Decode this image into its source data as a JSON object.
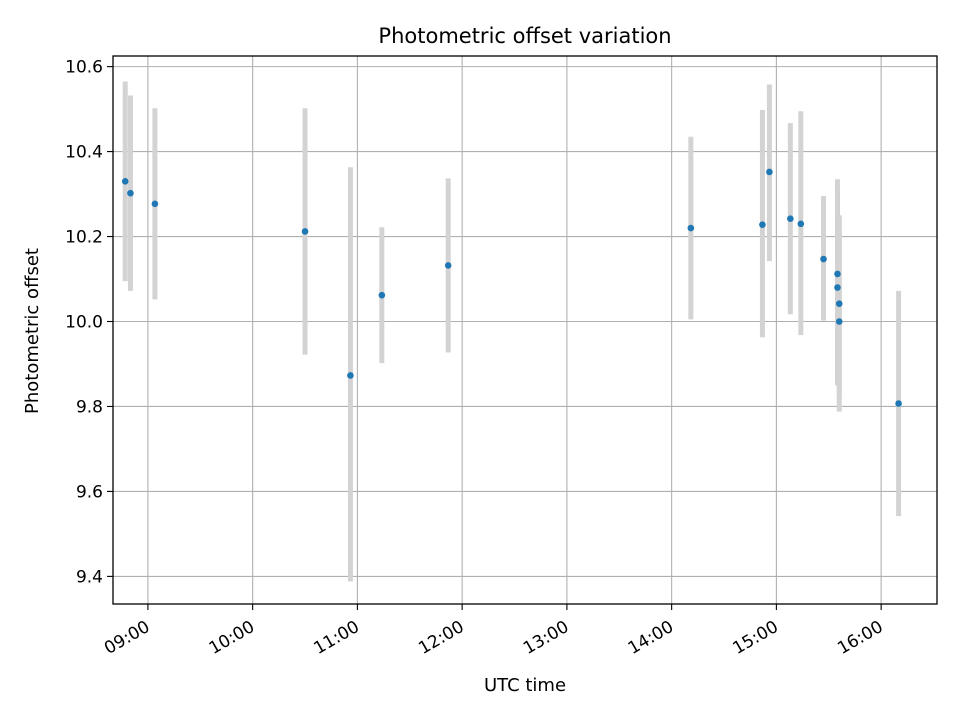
{
  "chart_data": {
    "type": "scatter",
    "title": "Photometric offset variation",
    "xlabel": "UTC time",
    "ylabel": "Photometric offset",
    "x_axis_type": "time",
    "xlim": [
      "08:40",
      "16:32"
    ],
    "ylim": [
      9.335,
      10.625
    ],
    "grid": true,
    "marker_color": "#1f77b4",
    "errorbar_color": "#d3d3d3",
    "x_ticks": [
      "09:00",
      "10:00",
      "11:00",
      "12:00",
      "13:00",
      "14:00",
      "15:00",
      "16:00"
    ],
    "y_ticks": [
      "9.4",
      "9.6",
      "9.8",
      "10.0",
      "10.2",
      "10.4",
      "10.6"
    ],
    "points": [
      {
        "x": "08:47",
        "y": 10.33,
        "err_low": 10.095,
        "err_high": 10.565
      },
      {
        "x": "08:50",
        "y": 10.302,
        "err_low": 10.072,
        "err_high": 10.532
      },
      {
        "x": "09:04",
        "y": 10.277,
        "err_low": 10.052,
        "err_high": 10.502
      },
      {
        "x": "10:30",
        "y": 10.212,
        "err_low": 9.922,
        "err_high": 10.502
      },
      {
        "x": "10:56",
        "y": 9.873,
        "err_low": 9.388,
        "err_high": 10.363
      },
      {
        "x": "11:14",
        "y": 10.062,
        "err_low": 9.902,
        "err_high": 10.222
      },
      {
        "x": "11:52",
        "y": 10.132,
        "err_low": 9.927,
        "err_high": 10.337
      },
      {
        "x": "14:11",
        "y": 10.22,
        "err_low": 10.005,
        "err_high": 10.435
      },
      {
        "x": "14:52",
        "y": 10.228,
        "err_low": 9.963,
        "err_high": 10.498
      },
      {
        "x": "14:56",
        "y": 10.352,
        "err_low": 10.142,
        "err_high": 10.558
      },
      {
        "x": "15:08",
        "y": 10.242,
        "err_low": 10.017,
        "err_high": 10.467
      },
      {
        "x": "15:14",
        "y": 10.23,
        "err_low": 9.968,
        "err_high": 10.495
      },
      {
        "x": "15:27",
        "y": 10.147,
        "err_low": 10.002,
        "err_high": 10.295
      },
      {
        "x": "15:35",
        "y": 10.112,
        "err_low": 9.89,
        "err_high": 10.335
      },
      {
        "x": "15:35",
        "y": 10.08,
        "err_low": 9.85,
        "err_high": 10.31
      },
      {
        "x": "15:36",
        "y": 10.042,
        "err_low": 9.83,
        "err_high": 10.25
      },
      {
        "x": "15:36",
        "y": 10.0,
        "err_low": 9.788,
        "err_high": 10.212
      },
      {
        "x": "16:10",
        "y": 9.807,
        "err_low": 9.542,
        "err_high": 10.072
      }
    ]
  }
}
